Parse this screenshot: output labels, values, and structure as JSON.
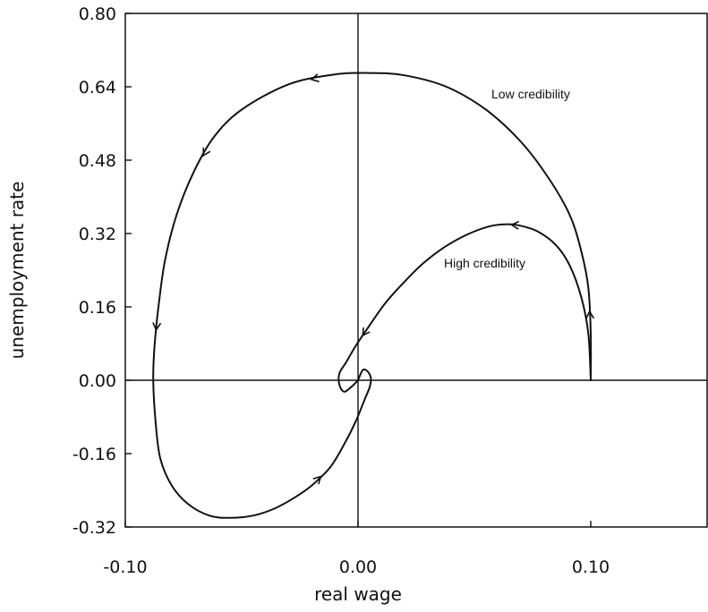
{
  "chart_data": {
    "type": "line",
    "xlabel": "real wage",
    "ylabel": "unemployment rate",
    "xlim": [
      -0.1,
      0.15
    ],
    "ylim": [
      -0.32,
      0.8
    ],
    "x_ticks": [
      "-0.10",
      "0.00",
      "0.10"
    ],
    "x_tick_values": [
      -0.1,
      0.0,
      0.1
    ],
    "y_ticks": [
      "0.80",
      "0.64",
      "0.48",
      "0.32",
      "0.16",
      "0.00",
      "-0.16",
      "-0.32"
    ],
    "y_tick_values": [
      0.8,
      0.64,
      0.48,
      0.32,
      0.16,
      0.0,
      -0.16,
      -0.32
    ],
    "reference_lines": {
      "x": 0.0,
      "y": 0.0
    },
    "grid": false,
    "series": [
      {
        "name": "Low credibility",
        "x": [
          0.1,
          0.1,
          0.099,
          0.096,
          0.091,
          0.082,
          0.07,
          0.055,
          0.038,
          0.02,
          0.005,
          -0.01,
          -0.03,
          -0.05,
          -0.062,
          -0.071,
          -0.078,
          -0.083,
          -0.086,
          -0.0875,
          -0.088,
          -0.087,
          -0.085,
          -0.08,
          -0.073,
          -0.064,
          -0.055,
          -0.045,
          -0.036,
          -0.027,
          -0.02,
          -0.012,
          -0.006,
          -0.001,
          0.003,
          0.005,
          0.0055,
          0.004,
          0.002,
          0.0
        ],
        "y": [
          0.0,
          0.1,
          0.2,
          0.28,
          0.36,
          0.44,
          0.52,
          0.59,
          0.64,
          0.665,
          0.67,
          0.667,
          0.645,
          0.59,
          0.53,
          0.45,
          0.36,
          0.26,
          0.15,
          0.07,
          0.0,
          -0.09,
          -0.17,
          -0.23,
          -0.27,
          -0.295,
          -0.3,
          -0.295,
          -0.28,
          -0.255,
          -0.23,
          -0.19,
          -0.14,
          -0.09,
          -0.04,
          -0.015,
          0.005,
          0.02,
          0.022,
          0.0
        ]
      },
      {
        "name": "High credibility",
        "x": [
          0.1,
          0.099,
          0.096,
          0.091,
          0.085,
          0.077,
          0.069,
          0.063,
          0.056,
          0.047,
          0.037,
          0.028,
          0.02,
          0.012,
          0.005,
          -0.001,
          -0.005,
          -0.008,
          -0.008,
          -0.006,
          -0.003,
          0.0
        ],
        "y": [
          0.0,
          0.1,
          0.18,
          0.25,
          0.295,
          0.325,
          0.338,
          0.34,
          0.335,
          0.318,
          0.29,
          0.255,
          0.215,
          0.17,
          0.12,
          0.075,
          0.04,
          0.015,
          -0.01,
          -0.025,
          -0.015,
          0.0
        ]
      }
    ],
    "annotations": [
      "Low credibility",
      "High credibility"
    ]
  }
}
